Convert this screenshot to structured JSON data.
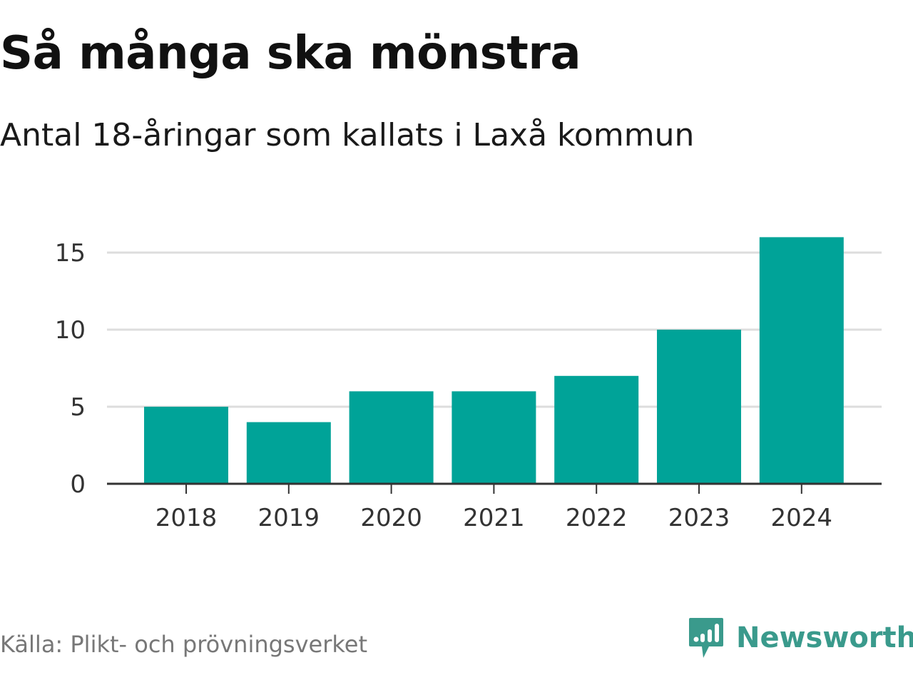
{
  "title": "Så många ska mönstra",
  "subtitle": "Antal 18-åringar som kallats i Laxå kommun",
  "source": "Källa: Plikt- och prövningsverket",
  "brand": {
    "name": "Newsworthy",
    "icon": "newsworthy-logo-icon",
    "color": "#3a9a8c"
  },
  "colors": {
    "bar": "#00a398",
    "grid": "#dddddd",
    "axis": "#333333"
  },
  "chart_data": {
    "type": "bar",
    "title": "Så många ska mönstra",
    "subtitle": "Antal 18-åringar som kallats i Laxå kommun",
    "categories": [
      "2018",
      "2019",
      "2020",
      "2021",
      "2022",
      "2023",
      "2024"
    ],
    "values": [
      5,
      4,
      6,
      6,
      7,
      10,
      16
    ],
    "xlabel": "",
    "ylabel": "",
    "ylim": [
      0,
      15
    ],
    "yticks": [
      0,
      5,
      10,
      15
    ],
    "grid": true,
    "legend": false
  }
}
